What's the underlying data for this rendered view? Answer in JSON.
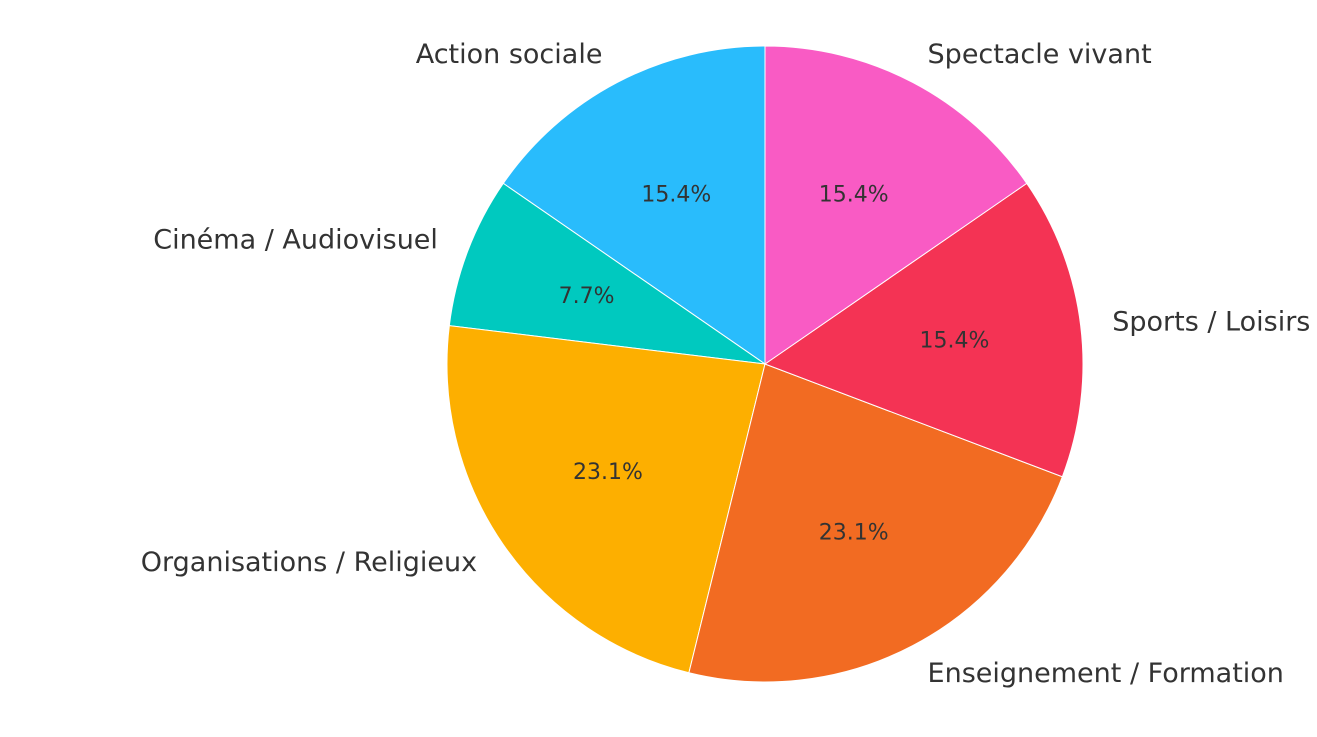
{
  "chart_data": {
    "type": "pie",
    "start_angle_deg": 90,
    "direction": "counterclockwise",
    "slices": [
      {
        "label": "Action sociale",
        "value": 15.4,
        "display": "15.4%",
        "color": "#29BCFC"
      },
      {
        "label": "Cinéma / Audiovisuel",
        "value": 7.7,
        "display": "7.7%",
        "color": "#00C9BF"
      },
      {
        "label": "Organisations / Religieux",
        "value": 23.1,
        "display": "23.1%",
        "color": "#FDAF00"
      },
      {
        "label": "Enseignement / Formation",
        "value": 23.1,
        "display": "23.1%",
        "color": "#F26B22"
      },
      {
        "label": "Sports / Loisirs",
        "value": 15.4,
        "display": "15.4%",
        "color": "#F43354"
      },
      {
        "label": "Spectacle vivant",
        "value": 15.4,
        "display": "15.4%",
        "color": "#F95BC4"
      }
    ]
  }
}
